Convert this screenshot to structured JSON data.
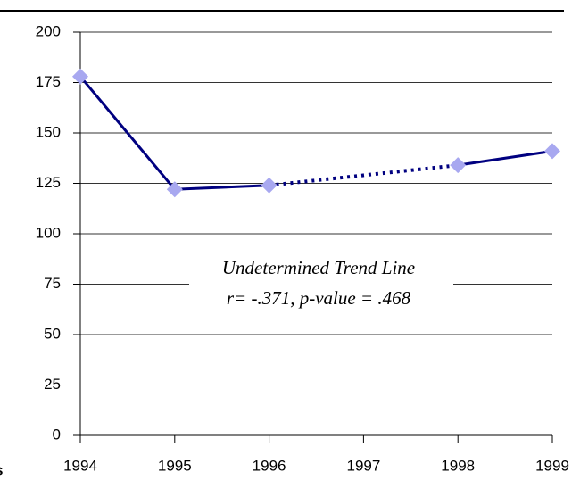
{
  "chart_data": {
    "type": "line",
    "x": [
      1994,
      1995,
      1996,
      1997,
      1998,
      1999
    ],
    "series": [
      {
        "color": "#000080",
        "marker_color": "#a8a8f0",
        "values": [
          178,
          122,
          124,
          null,
          134,
          141
        ]
      }
    ],
    "gap_style": "dotted",
    "xlim": [
      1994,
      1999
    ],
    "xticks": [
      1994,
      1995,
      1996,
      1997,
      1998,
      1999
    ],
    "ylim": [
      0,
      200
    ],
    "yticks": [
      0,
      25,
      50,
      75,
      100,
      125,
      150,
      175,
      200
    ],
    "grid": true,
    "annotations": [
      "Undetermined Trend Line",
      "r= -.371, p-value = .468"
    ],
    "cut_text": "s"
  }
}
